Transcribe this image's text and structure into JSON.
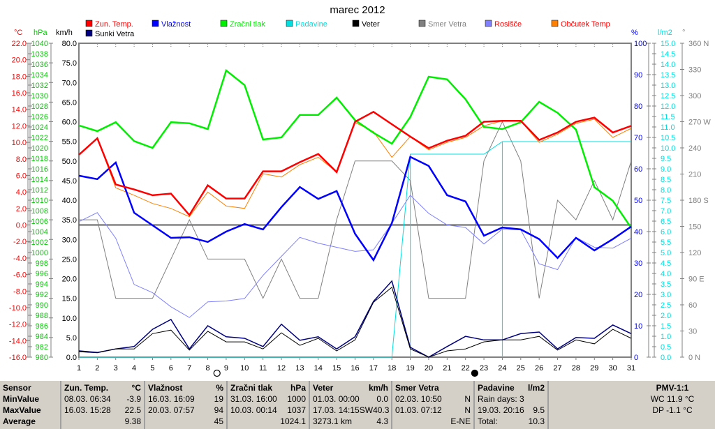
{
  "chart_data": {
    "type": "line",
    "title": "marec 2012",
    "x": [
      1,
      2,
      3,
      4,
      5,
      6,
      7,
      8,
      9,
      10,
      11,
      12,
      13,
      14,
      15,
      16,
      17,
      18,
      19,
      20,
      21,
      22,
      23,
      24,
      25,
      26,
      27,
      28,
      29,
      30,
      31
    ],
    "axes": {
      "temp": {
        "label": "°C",
        "range": [
          -16,
          22
        ],
        "step": 2,
        "color": "#ff0000"
      },
      "pressure": {
        "label": "hPa",
        "range": [
          980,
          1040
        ],
        "step": 2,
        "color": "#00cc00"
      },
      "wind": {
        "label": "km/h",
        "range": [
          0,
          80
        ],
        "step": 5,
        "color": "#000000"
      },
      "humidity": {
        "label": "%",
        "range": [
          0,
          100
        ],
        "step": 5,
        "color": "#0000ff"
      },
      "rain": {
        "label": "l/m2",
        "range": [
          0,
          15
        ],
        "step": 0.5,
        "color": "#00e0e0"
      },
      "direction": {
        "label": "°",
        "range": [
          0,
          360
        ],
        "step": 30,
        "color": "#808080",
        "compass": {
          "0": "N",
          "90": "E",
          "180": "S",
          "270": "W",
          "360": "N"
        }
      }
    },
    "series": [
      {
        "name": "Zun. Temp.",
        "axis": "temp",
        "color": "#ff0000",
        "width": 2.5,
        "values": [
          8.5,
          10.5,
          4.9,
          4.3,
          3.6,
          3.8,
          1.2,
          4.8,
          3.2,
          3.2,
          6.5,
          6.5,
          7.6,
          8.6,
          6.4,
          12.5,
          13.7,
          12.2,
          10.7,
          9.3,
          10.2,
          10.8,
          12.5,
          12.6,
          12.6,
          10.3,
          11.2,
          12.5,
          13.0,
          11.2,
          12.0
        ]
      },
      {
        "name": "Vlažnost",
        "axis": "humidity",
        "color": "#0000ff",
        "width": 2.5,
        "values": [
          57.8,
          56.7,
          62,
          46,
          42,
          38,
          38.2,
          36.7,
          40,
          42.4,
          40.7,
          47.8,
          54.2,
          50.4,
          52.9,
          39.3,
          30.9,
          42.7,
          63.8,
          60.9,
          51.6,
          49.6,
          38.7,
          41.3,
          40.7,
          37.6,
          31.6,
          38,
          34,
          37.6,
          41.6
        ]
      },
      {
        "name": "Zračni tlak",
        "axis": "pressure",
        "color": "#00ee00",
        "width": 2.5,
        "values": [
          1024.3,
          1023.2,
          1024.9,
          1021.3,
          1020,
          1024.9,
          1024.7,
          1023.6,
          1034.8,
          1032,
          1021.6,
          1022,
          1026.3,
          1026.3,
          1029.6,
          1025.3,
          1022.9,
          1020.8,
          1025.9,
          1033.6,
          1033.1,
          1029.3,
          1024,
          1023.6,
          1024.9,
          1028.8,
          1026.7,
          1023.5,
          1012.5,
          1009.9,
          1004.7
        ]
      },
      {
        "name": "Padavine",
        "axis": "rain",
        "color": "#00e0e0",
        "width": 1,
        "values": [
          0,
          0,
          0,
          0,
          0,
          0,
          0,
          0,
          0,
          0,
          0,
          0,
          0,
          0,
          0,
          0,
          0,
          0,
          9.7,
          9.7,
          9.7,
          9.7,
          9.7,
          10.3,
          10.3,
          10.3,
          10.3,
          10.3,
          10.3,
          10.3,
          10.3
        ]
      },
      {
        "name": "Veter",
        "axis": "wind",
        "color": "#000000",
        "width": 1,
        "values": [
          1.4,
          1.1,
          2.1,
          2.1,
          6,
          6.9,
          1.8,
          6.6,
          3.9,
          3.9,
          2.1,
          6.2,
          3,
          4.8,
          1.6,
          4.4,
          14,
          17.8,
          2.1,
          0,
          1.6,
          2.1,
          3.9,
          4.4,
          4.4,
          5.3,
          1.8,
          4.4,
          3.4,
          7.1,
          4.8
        ]
      },
      {
        "name": "Smer Vetra",
        "axis": "direction",
        "color": "#808080",
        "width": 1,
        "values": [
          157.5,
          157.5,
          67.5,
          67.5,
          67.5,
          112.5,
          157.5,
          112.5,
          112.5,
          112.5,
          67.5,
          112.5,
          67.5,
          67.5,
          157.5,
          225,
          225,
          225,
          202.5,
          67.5,
          67.5,
          67.5,
          225,
          270,
          225,
          67.5,
          180,
          157.5,
          202.5,
          157.5,
          225
        ]
      },
      {
        "name": "Rosišče",
        "axis": "temp",
        "color": "#8080ff",
        "width": 1,
        "values": [
          0.4,
          1.5,
          -1.6,
          -7.2,
          -8.2,
          -9.9,
          -11.2,
          -9.3,
          -9.2,
          -8.9,
          -6.1,
          -3.8,
          -1.5,
          -2.2,
          -2.7,
          -3.2,
          -3.0,
          0.2,
          3.6,
          1.4,
          0,
          -0.3,
          -2.3,
          -0.5,
          -0.6,
          -4.7,
          -5.4,
          -1.5,
          -2.7,
          -2.8,
          -1.6
        ]
      },
      {
        "name": "Občutek Temp",
        "axis": "temp",
        "color": "#ff8000",
        "width": 1,
        "values": [
          8.5,
          10.5,
          4.5,
          3.6,
          2.6,
          2.0,
          1.0,
          4.0,
          2.3,
          2.0,
          6.2,
          5.8,
          7.3,
          8.2,
          6.4,
          12.4,
          11.3,
          8.2,
          10.7,
          9.1,
          10.0,
          10.6,
          12.0,
          12.6,
          12.6,
          10.0,
          11.0,
          12.3,
          12.8,
          10.6,
          11.7
        ]
      },
      {
        "name": "Sunki Vetra",
        "axis": "wind",
        "color": "#000080",
        "width": 1.5,
        "values": [
          1.6,
          1.2,
          2.1,
          2.7,
          7.1,
          9.6,
          2.1,
          8,
          5.2,
          4.8,
          2.7,
          8.4,
          4.3,
          5.2,
          2.1,
          5.2,
          14.2,
          19.4,
          2.5,
          0,
          2.7,
          5.3,
          4.4,
          4.4,
          6,
          6.4,
          2.1,
          5,
          4.8,
          8.2,
          6
        ]
      }
    ],
    "legend_order": [
      "Zun. Temp.",
      "Vlažnost",
      "Zračni tlak",
      "Padavine",
      "Veter",
      "Smer Vetra",
      "Rosišče",
      "Občutek Temp",
      "Sunki Vetra"
    ],
    "legend_text_colors": [
      "#ff0000",
      "#0000ff",
      "#00ee00",
      "#00e0e0",
      "#000000",
      "#808080",
      "#ff0000",
      "#ff0000",
      "#000000"
    ],
    "moon_phases": [
      {
        "day": 8.5,
        "phase": "full"
      },
      {
        "day": 22.5,
        "phase": "new"
      }
    ]
  },
  "stats": {
    "sensor": {
      "header": "Sensor",
      "rows": [
        "MinValue",
        "MaxValue",
        "Average"
      ]
    },
    "temp": {
      "name": "Zun. Temp.",
      "unit": "°C",
      "min": [
        "08.03.  06:34",
        "-3.9"
      ],
      "max": [
        "16.03.  15:28",
        "22.5"
      ],
      "avg": [
        "",
        "9.38"
      ]
    },
    "hum": {
      "name": "Vlažnost",
      "unit": "%",
      "min": [
        "16.03.  16:09",
        "19"
      ],
      "max": [
        "20.03.  07:57",
        "94"
      ],
      "avg": [
        "",
        "45"
      ]
    },
    "press": {
      "name": "Zračni tlak",
      "unit": "hPa",
      "min": [
        "31.03.  16:00",
        "1000"
      ],
      "max": [
        "10.03.  00:14",
        "1037"
      ],
      "avg": [
        "",
        "1024.1"
      ]
    },
    "wind": {
      "name": "Veter",
      "unit": "km/h",
      "min": [
        "01.03.  00:00",
        "0.0"
      ],
      "max": [
        "17.03.  14:15SW",
        "40.3"
      ],
      "avg": [
        "3273.1 km",
        "4.3"
      ]
    },
    "dir": {
      "name": "Smer Vetra",
      "unit": "",
      "min": [
        "02.03.  10:50",
        "N"
      ],
      "max": [
        "01.03.  07:12",
        "N"
      ],
      "avg": [
        "",
        "E-NE"
      ]
    },
    "rain": {
      "name": "Padavine",
      "unit": "l/m2",
      "min": [
        "Rain days: 3",
        ""
      ],
      "max": [
        "19.03.  20:16",
        "9.5"
      ],
      "avg": [
        "Total:",
        "10.3"
      ]
    },
    "pmv": {
      "name": "PMV-1:1",
      "wc": "WC 11.9 °C",
      "dp": "DP -1.1 °C"
    }
  }
}
